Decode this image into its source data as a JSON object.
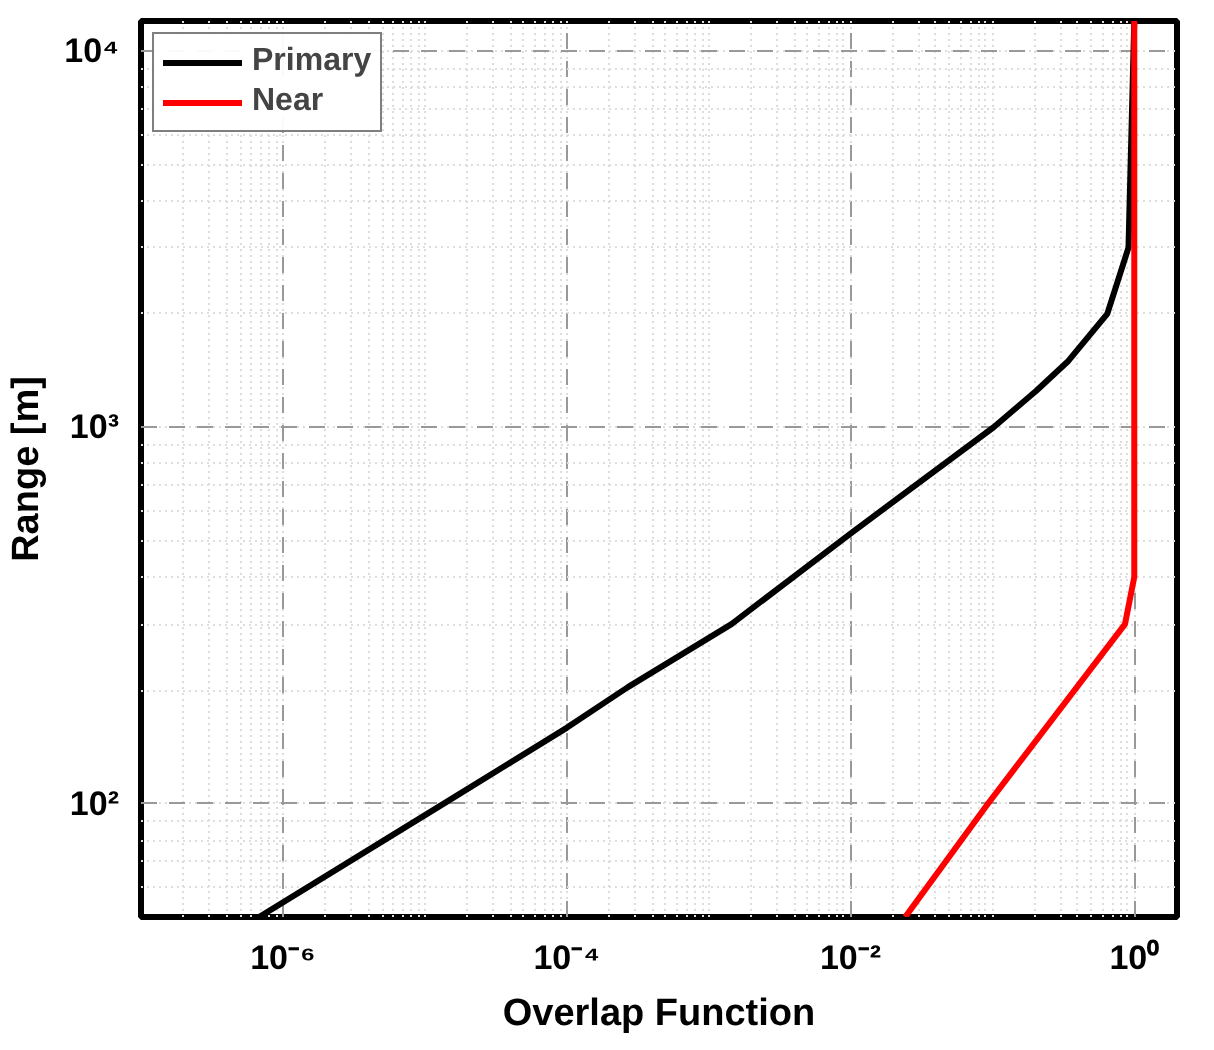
{
  "chart_data": {
    "type": "line",
    "xlabel": "Overlap Function",
    "ylabel": "Range [m]",
    "log": "xy",
    "grid": true,
    "legend": "top left",
    "line_style": "solid",
    "marker": "none",
    "xlim": [
      1e-07,
      2
    ],
    "ylim": [
      50,
      12000
    ],
    "xticks": [
      {
        "value": 1e-06,
        "label": "10⁻⁶"
      },
      {
        "value": 0.0001,
        "label": "10⁻⁴"
      },
      {
        "value": 0.01,
        "label": "10⁻²"
      },
      {
        "value": 1,
        "label": "10⁰"
      }
    ],
    "yticks": [
      {
        "value": 100,
        "label": "10²"
      },
      {
        "value": 1000,
        "label": "10³"
      },
      {
        "value": 10000,
        "label": "10⁴"
      }
    ],
    "series": [
      {
        "name": "Primary",
        "color": "#000000",
        "x": [
          6.8e-07,
          1.36e-05,
          0.0001,
          0.00027,
          0.00145,
          0.01,
          0.102,
          0.204,
          0.343,
          0.645,
          0.91,
          1
        ],
        "values": [
          50,
          100,
          159,
          204,
          300,
          522,
          1000,
          1250,
          1500,
          2000,
          3000,
          12000
        ]
      },
      {
        "name": "Near",
        "color": "#ff0000",
        "x": [
          0.0243,
          0.093,
          0.86,
          1,
          1
        ],
        "values": [
          50,
          100,
          300,
          400,
          12000
        ]
      }
    ]
  }
}
